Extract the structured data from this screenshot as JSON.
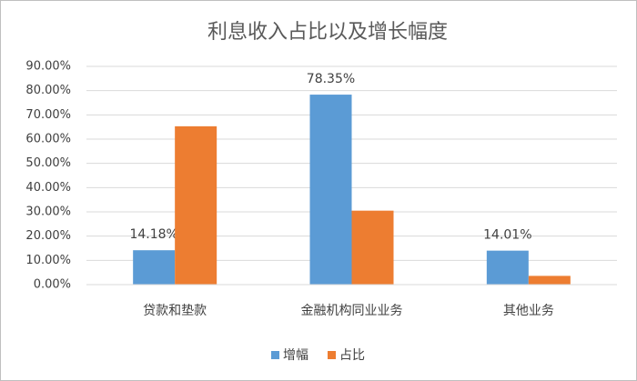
{
  "chart_data": {
    "type": "bar",
    "title": "利息收入占比以及增长幅度",
    "categories": [
      "贷款和垫款",
      "金融机构同业业务",
      "其他业务"
    ],
    "series": [
      {
        "name": "增幅",
        "color": "#5b9bd5",
        "values": [
          14.18,
          78.35,
          14.01
        ],
        "value_labels": [
          "14.18%",
          "78.35%",
          "14.01%"
        ]
      },
      {
        "name": "占比",
        "color": "#ed7d31",
        "values": [
          65.3,
          30.5,
          3.6
        ]
      }
    ],
    "ylim": [
      0,
      90
    ],
    "yticks": [
      {
        "value": 0,
        "label": "0.00%"
      },
      {
        "value": 10,
        "label": "10.00%"
      },
      {
        "value": 20,
        "label": "20.00%"
      },
      {
        "value": 30,
        "label": "30.00%"
      },
      {
        "value": 40,
        "label": "40.00%"
      },
      {
        "value": 50,
        "label": "50.00%"
      },
      {
        "value": 60,
        "label": "60.00%"
      },
      {
        "value": 70,
        "label": "70.00%"
      },
      {
        "value": 80,
        "label": "80.00%"
      },
      {
        "value": 90,
        "label": "90.00%"
      }
    ],
    "grid": true,
    "legend": "bottom"
  }
}
